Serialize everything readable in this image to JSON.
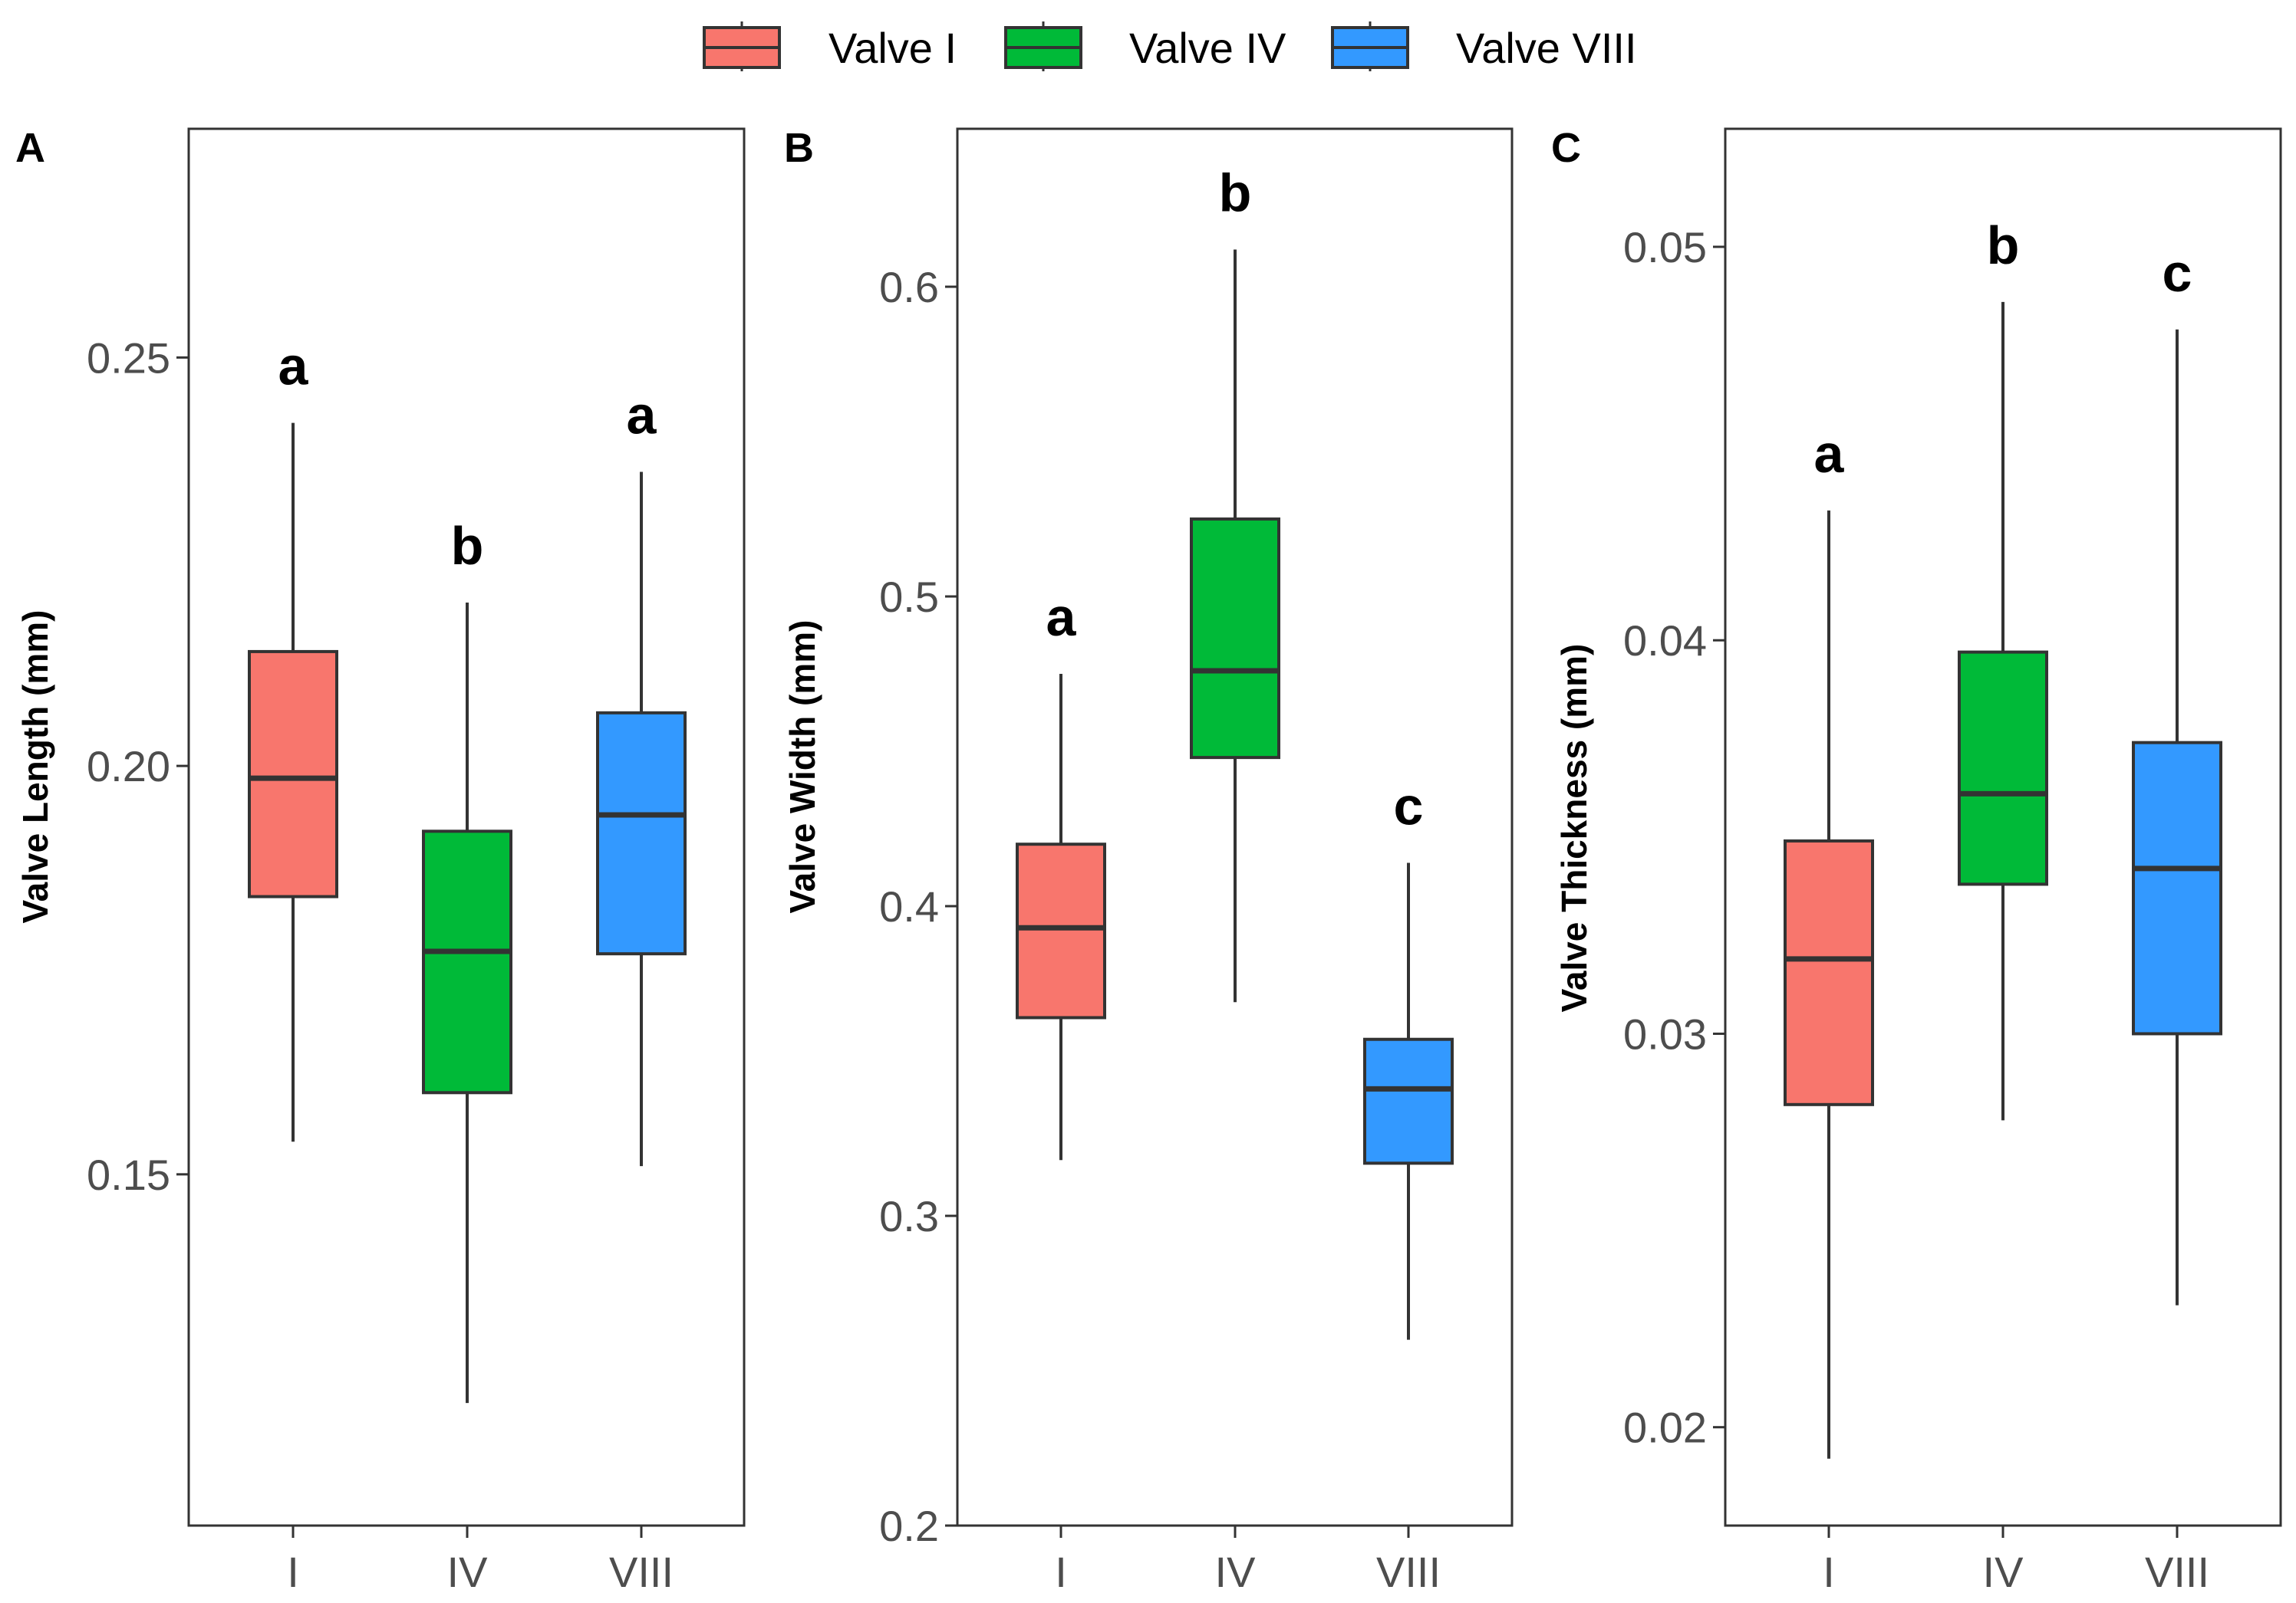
{
  "legend": {
    "items": [
      {
        "label": "Valve I",
        "color": "#F8766D"
      },
      {
        "label": "Valve IV",
        "color": "#00BA38"
      },
      {
        "label": "Valve VIII",
        "color": "#3399FF"
      }
    ]
  },
  "chart_data": [
    {
      "type": "boxplot",
      "panel": "A",
      "ylabel": "Valve Length (mm)",
      "xlabel": "",
      "categories": [
        "I",
        "IV",
        "VIII"
      ],
      "ylim": [
        0.107,
        0.278
      ],
      "yticks": [
        0.15,
        0.2,
        0.25
      ],
      "ytick_labels": [
        "0.15",
        "0.20",
        "0.25"
      ],
      "grid": false,
      "boxes": [
        {
          "category": "I",
          "color": "#F8766D",
          "whisker_low": 0.154,
          "q1": 0.184,
          "median": 0.1985,
          "q3": 0.214,
          "whisker_high": 0.242,
          "letter": "a"
        },
        {
          "category": "IV",
          "color": "#00BA38",
          "whisker_low": 0.122,
          "q1": 0.16,
          "median": 0.1773,
          "q3": 0.192,
          "whisker_high": 0.22,
          "letter": "b"
        },
        {
          "category": "VIII",
          "color": "#3399FF",
          "whisker_low": 0.151,
          "q1": 0.177,
          "median": 0.194,
          "q3": 0.2065,
          "whisker_high": 0.236,
          "letter": "a"
        }
      ]
    },
    {
      "type": "boxplot",
      "panel": "B",
      "ylabel": "Valve Width (mm)",
      "xlabel": "",
      "categories": [
        "I",
        "IV",
        "VIII"
      ],
      "ylim": [
        0.2,
        0.651
      ],
      "yticks": [
        0.2,
        0.3,
        0.4,
        0.5,
        0.6
      ],
      "ytick_labels": [
        "0.2",
        "0.3",
        "0.4",
        "0.5",
        "0.6"
      ],
      "grid": false,
      "boxes": [
        {
          "category": "I",
          "color": "#F8766D",
          "whisker_low": 0.318,
          "q1": 0.364,
          "median": 0.393,
          "q3": 0.42,
          "whisker_high": 0.475,
          "letter": "a"
        },
        {
          "category": "IV",
          "color": "#00BA38",
          "whisker_low": 0.369,
          "q1": 0.448,
          "median": 0.476,
          "q3": 0.525,
          "whisker_high": 0.612,
          "letter": "b"
        },
        {
          "category": "VIII",
          "color": "#3399FF",
          "whisker_low": 0.26,
          "q1": 0.317,
          "median": 0.341,
          "q3": 0.357,
          "whisker_high": 0.414,
          "letter": "c"
        }
      ]
    },
    {
      "type": "boxplot",
      "panel": "C",
      "ylabel": "Valve Thickness (mm)",
      "xlabel": "",
      "categories": [
        "I",
        "IV",
        "VIII"
      ],
      "ylim": [
        0.0175,
        0.053
      ],
      "yticks": [
        0.02,
        0.03,
        0.04,
        0.05
      ],
      "ytick_labels": [
        "0.02",
        "0.03",
        "0.04",
        "0.05"
      ],
      "grid": false,
      "boxes": [
        {
          "category": "I",
          "color": "#F8766D",
          "whisker_low": 0.0192,
          "q1": 0.0282,
          "median": 0.0319,
          "q3": 0.0349,
          "whisker_high": 0.0433,
          "letter": "a"
        },
        {
          "category": "IV",
          "color": "#00BA38",
          "whisker_low": 0.0278,
          "q1": 0.0338,
          "median": 0.0361,
          "q3": 0.0397,
          "whisker_high": 0.0486,
          "letter": "b"
        },
        {
          "category": "VIII",
          "color": "#3399FF",
          "whisker_low": 0.0231,
          "q1": 0.03,
          "median": 0.0342,
          "q3": 0.0374,
          "whisker_high": 0.0479,
          "letter": "c"
        }
      ]
    }
  ]
}
